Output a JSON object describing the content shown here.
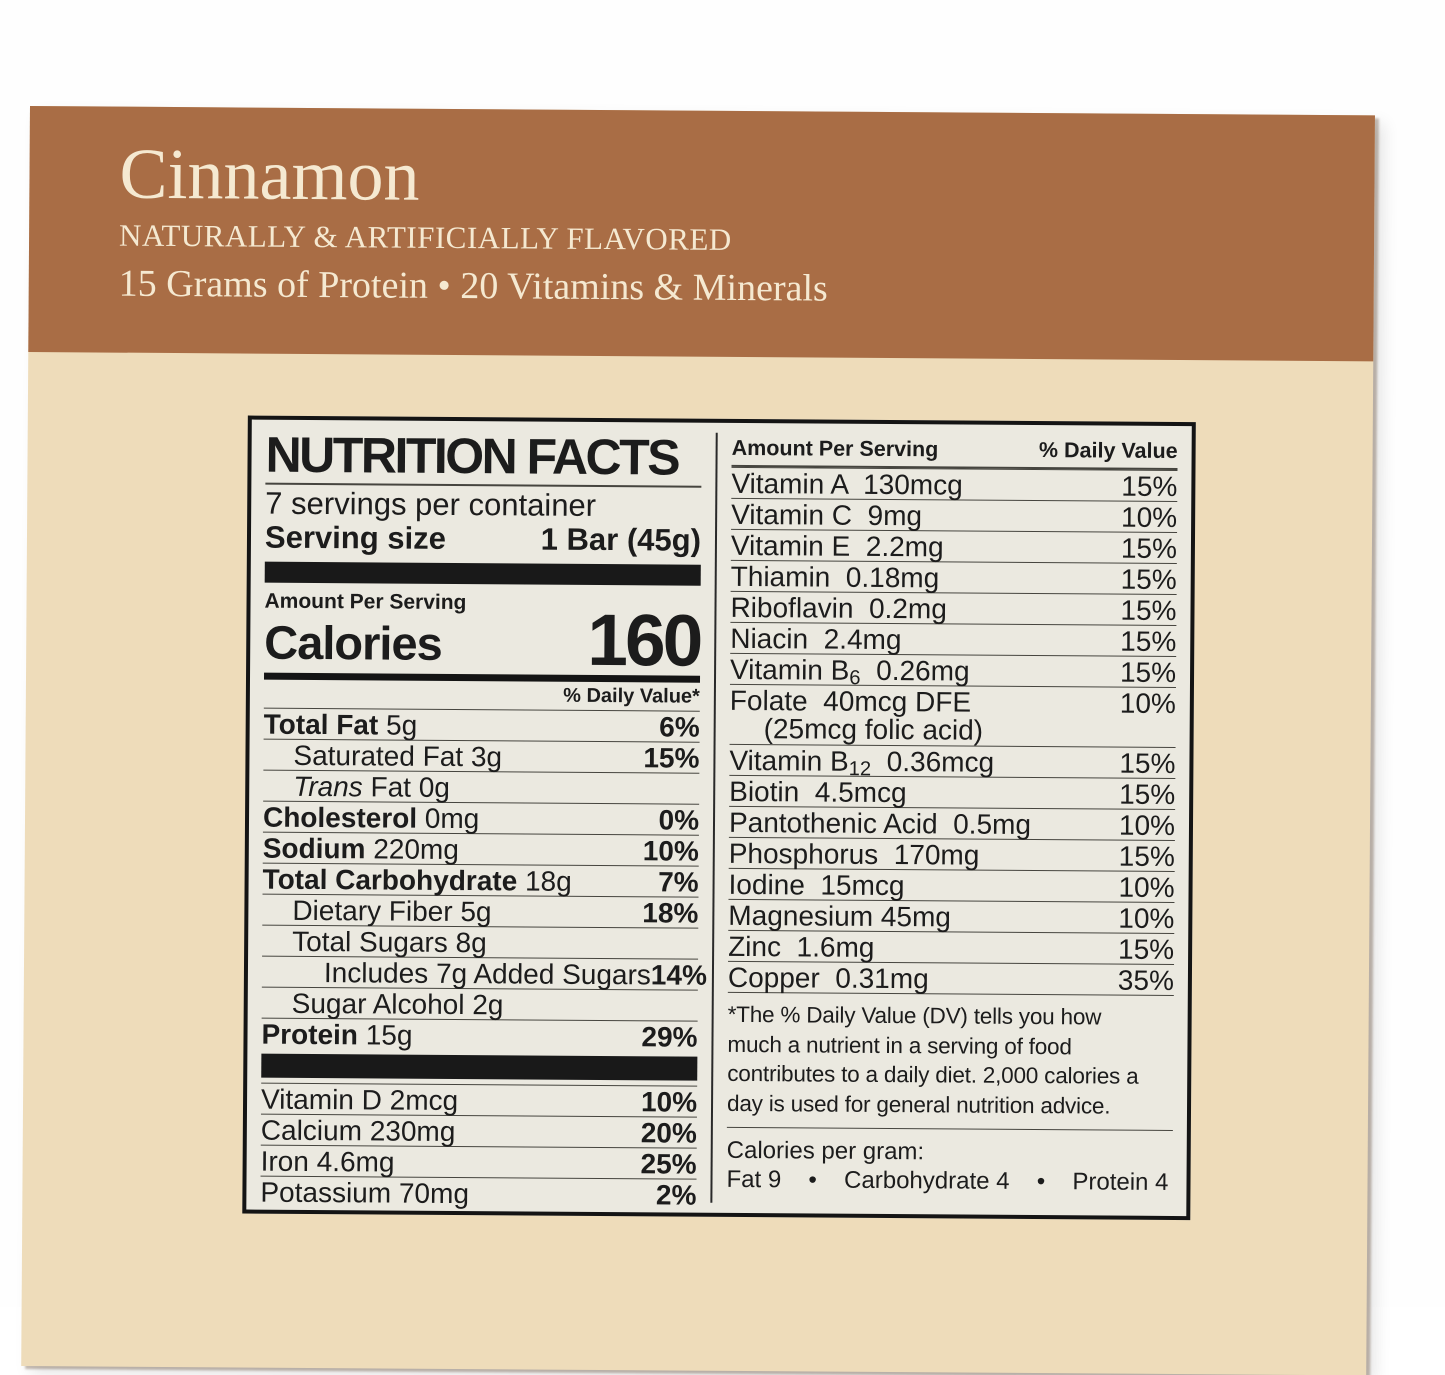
{
  "box": {
    "flavor": "Cinnamon",
    "flavor_note": "NATURALLY & ARTIFICIALLY FLAVORED",
    "tagline": "15 Grams of Protein • 20 Vitamins & Minerals",
    "colors": {
      "band": "#a96d45",
      "band_text": "#f5e9d1",
      "box_face": "#eedcba",
      "label_bg": "#ebe9e0"
    }
  },
  "label": {
    "title": "NUTRITION FACTS",
    "servings_per_container": "7 servings per container",
    "serving_size_label": "Serving size",
    "serving_size_value": "1 Bar (45g)",
    "amount_per_serving": "Amount Per Serving",
    "calories_label": "Calories",
    "calories_value": "160",
    "daily_value_heading": "% Daily Value*",
    "nutrients": [
      {
        "b": "Total Fat",
        "t": " 5g",
        "dv": "6%",
        "indent": 0
      },
      {
        "t": "Saturated Fat 3g",
        "dv": "15%",
        "indent": 1
      },
      {
        "i": "Trans",
        "t": " Fat 0g",
        "dv": "",
        "indent": 1
      },
      {
        "b": "Cholesterol",
        "t": " 0mg",
        "dv": "0%",
        "indent": 0
      },
      {
        "b": "Sodium",
        "t": " 220mg",
        "dv": "10%",
        "indent": 0
      },
      {
        "b": "Total Carbohydrate",
        "t": " 18g",
        "dv": "7%",
        "indent": 0
      },
      {
        "t": "Dietary Fiber 5g",
        "dv": "18%",
        "indent": 1
      },
      {
        "t": "Total Sugars 8g",
        "dv": "",
        "indent": 1
      },
      {
        "t": "Includes 7g Added Sugars",
        "dv": "14%",
        "indent": 2
      },
      {
        "t": "Sugar Alcohol 2g",
        "dv": "",
        "indent": 1
      },
      {
        "b": "Protein",
        "t": " 15g",
        "dv": "29%",
        "indent": 0
      }
    ],
    "minerals": [
      {
        "t": "Vitamin D 2mcg",
        "dv": "10%"
      },
      {
        "t": "Calcium 230mg",
        "dv": "20%"
      },
      {
        "t": "Iron 4.6mg",
        "dv": "25%"
      },
      {
        "t": "Potassium 70mg",
        "dv": "2%"
      }
    ],
    "vitamins_header": {
      "amount": "Amount Per Serving",
      "dv": "% Daily Value"
    },
    "vitamins": [
      {
        "t": "Vitamin A  130mcg",
        "dv": "15%"
      },
      {
        "t": "Vitamin C  9mg",
        "dv": "10%"
      },
      {
        "t": "Vitamin E  2.2mg",
        "dv": "15%"
      },
      {
        "t": "Thiamin  0.18mg",
        "dv": "15%"
      },
      {
        "t": "Riboflavin  0.2mg",
        "dv": "15%"
      },
      {
        "t": "Niacin  2.4mg",
        "dv": "15%"
      },
      {
        "t": "Vitamin B",
        "sub": "6",
        "t2": "  0.26mg",
        "dv": "15%"
      },
      {
        "t": "Folate  40mcg DFE",
        "dv": "10%",
        "line2": "(25mcg folic acid)"
      },
      {
        "t": "Vitamin B",
        "sub": "12",
        "t2": "  0.36mcg",
        "dv": "15%"
      },
      {
        "t": "Biotin  4.5mcg",
        "dv": "15%"
      },
      {
        "t": "Pantothenic Acid  0.5mg",
        "dv": "10%"
      },
      {
        "t": "Phosphorus  170mg",
        "dv": "15%"
      },
      {
        "t": "Iodine  15mcg",
        "dv": "10%"
      },
      {
        "t": "Magnesium 45mg",
        "dv": "10%"
      },
      {
        "t": "Zinc  1.6mg",
        "dv": "15%"
      },
      {
        "t": "Copper  0.31mg",
        "dv": "35%"
      }
    ],
    "footnote_lines": [
      "*The % Daily Value (DV) tells you how",
      "much a nutrient in a serving of food",
      "contributes to a daily diet. 2,000 calories a",
      "day is used for general nutrition advice."
    ],
    "calories_per_gram": {
      "label": "Calories per gram:",
      "items": [
        "Fat 9",
        "Carbohydrate 4",
        "Protein 4"
      ],
      "separator": "•"
    }
  }
}
